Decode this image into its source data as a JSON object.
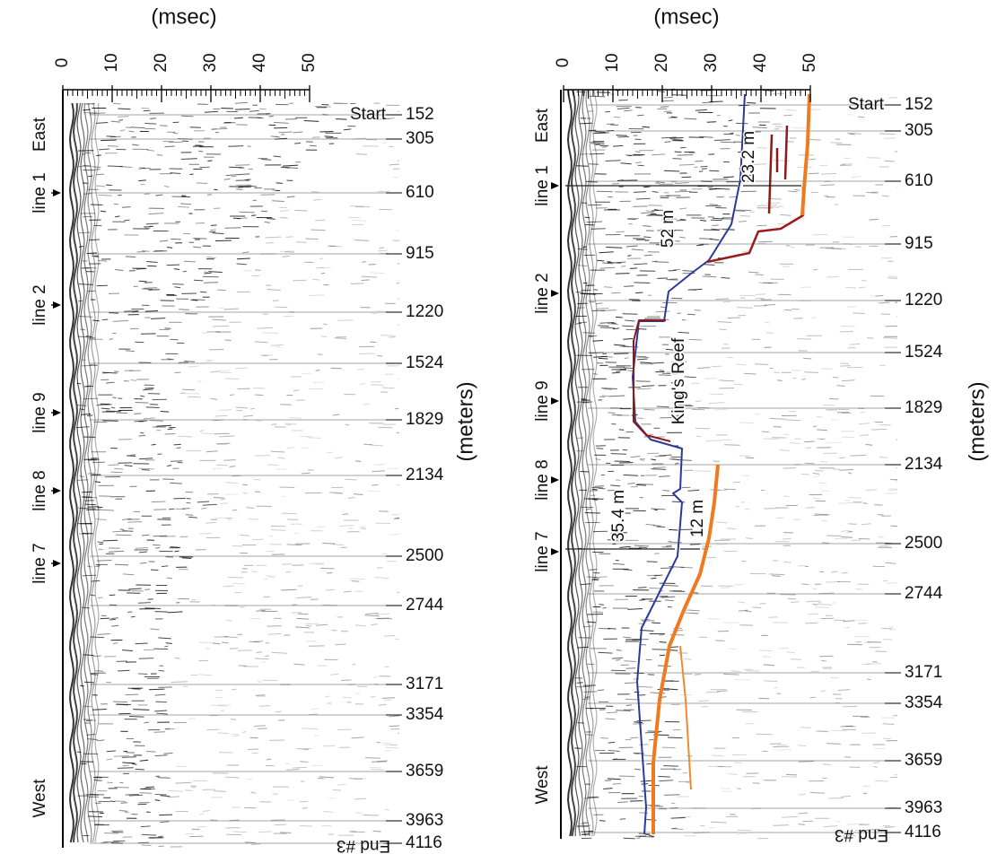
{
  "panels": [
    {
      "x_label": "(msec)",
      "x_ticks": [
        0,
        10,
        20,
        30,
        40,
        50
      ],
      "y_label": "(meters)",
      "distances": [
        152,
        305,
        610,
        915,
        1220,
        1524,
        1829,
        2134,
        2500,
        2744,
        3171,
        3354,
        3659,
        3963,
        4116
      ],
      "start_label": "Start",
      "end_label": "End #3",
      "directions": [
        "East",
        "West"
      ],
      "lines": [
        "line 1",
        "line 2",
        "line 9",
        "line 8",
        "line 7"
      ],
      "annotations": []
    },
    {
      "x_label": "(msec)",
      "x_ticks": [
        0,
        10,
        20,
        30,
        40,
        50
      ],
      "y_label": "(meters)",
      "distances": [
        152,
        305,
        610,
        915,
        1220,
        1524,
        1829,
        2134,
        2500,
        2744,
        3171,
        3354,
        3659,
        3963,
        4116
      ],
      "start_label": "Start",
      "end_label": "End #3",
      "directions": [
        "East",
        "West"
      ],
      "lines": [
        "line 1",
        "line 2",
        "line 9",
        "line 8",
        "line 7"
      ],
      "annotations": [
        "52 m",
        "23.2 m",
        "35.4 m",
        "12 m",
        "King's Reef"
      ]
    }
  ]
}
